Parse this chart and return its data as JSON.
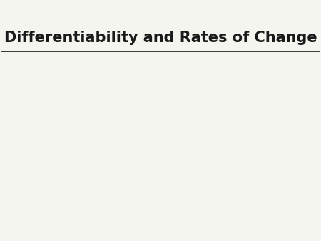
{
  "title": "Differentiability and Rates of Change",
  "title_fontsize": 15,
  "title_color": "#1a1a1a",
  "background_color": "#f5f5f0",
  "font_family": "DejaVu Sans"
}
